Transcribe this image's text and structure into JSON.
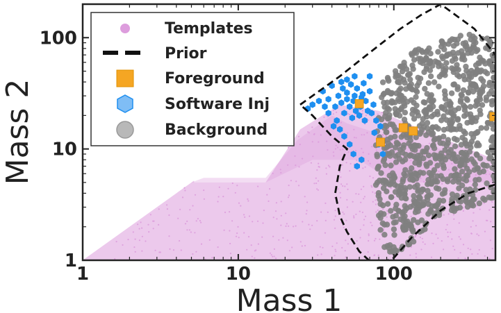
{
  "chart_data": {
    "type": "scatter",
    "xscale": "log",
    "yscale": "log",
    "xlim": [
      1,
      450
    ],
    "ylim": [
      1,
      200
    ],
    "xlabel": "Mass 1",
    "ylabel": "Mass 2",
    "grid": false,
    "legend_position": "upper-left",
    "x_ticks": [
      {
        "value": 1,
        "label": "1"
      },
      {
        "value": 10,
        "label": "10"
      },
      {
        "value": 100,
        "label": "100"
      }
    ],
    "y_ticks": [
      {
        "value": 1,
        "label": "1"
      },
      {
        "value": 10,
        "label": "10"
      },
      {
        "value": 100,
        "label": "100"
      }
    ],
    "colors": {
      "templates": "#dd9ddd",
      "prior": "#111111",
      "foreground": "#f5a623",
      "software_inj": "#1e8ff0",
      "background": "#808080"
    },
    "series": [
      {
        "name": "Templates",
        "marker": "circle",
        "color": "#dd9ddd",
        "regions": [
          [
            [
              1,
              1
            ],
            [
              3,
              3
            ],
            [
              5.2,
              5.2
            ],
            [
              5.2,
              5
            ],
            [
              15,
              5
            ],
            [
              25,
              15
            ],
            [
              45,
              25
            ],
            [
              80,
              22
            ],
            [
              150,
              15
            ],
            [
              450,
              8
            ],
            [
              450,
              1
            ]
          ],
          [
            [
              5,
              5
            ],
            [
              6,
              5.5
            ],
            [
              15,
              5.5
            ],
            [
              24,
              12
            ],
            [
              40,
              20
            ],
            [
              50,
              17
            ],
            [
              90,
              13
            ],
            [
              200,
              10
            ],
            [
              450,
              6
            ],
            [
              450,
              5
            ],
            [
              200,
              5
            ],
            [
              100,
              5
            ],
            [
              60,
              8
            ],
            [
              30,
              8
            ],
            [
              15,
              5
            ]
          ]
        ]
      },
      {
        "name": "Prior",
        "marker": "dashed-line",
        "color": "#111111",
        "polygon": [
          [
            25,
            25
          ],
          [
            45,
            45
          ],
          [
            60,
            62
          ],
          [
            80,
            85
          ],
          [
            110,
            120
          ],
          [
            150,
            160
          ],
          [
            200,
            200
          ],
          [
            330,
            120
          ],
          [
            450,
            70
          ],
          [
            450,
            4.8
          ],
          [
            300,
            4
          ],
          [
            200,
            2.8
          ],
          [
            130,
            1.6
          ],
          [
            100,
            1.05
          ],
          [
            75,
            0.9
          ],
          [
            60,
            1.2
          ],
          [
            50,
            1.8
          ],
          [
            45,
            2.5
          ],
          [
            42,
            4
          ],
          [
            45,
            7
          ],
          [
            50,
            10
          ],
          [
            40,
            13
          ],
          [
            30,
            20
          ]
        ]
      },
      {
        "name": "Foreground",
        "marker": "square",
        "color": "#f5a623",
        "points": [
          [
            60,
            25.5
          ],
          [
            115,
            15.5
          ],
          [
            133,
            14.5
          ],
          [
            82,
            11.5
          ],
          [
            440,
            19.5
          ]
        ]
      },
      {
        "name": "Software Inj",
        "marker": "hexagon",
        "color": "#1e8ff0",
        "points": [
          [
            35,
            33
          ],
          [
            38,
            28
          ],
          [
            40,
            37
          ],
          [
            42,
            24
          ],
          [
            44,
            30
          ],
          [
            46,
            26
          ],
          [
            47,
            35
          ],
          [
            48,
            21
          ],
          [
            50,
            28
          ],
          [
            50,
            32
          ],
          [
            52,
            24
          ],
          [
            53,
            38
          ],
          [
            54,
            19
          ],
          [
            55,
            27
          ],
          [
            56,
            30
          ],
          [
            57,
            22
          ],
          [
            58,
            35
          ],
          [
            60,
            20
          ],
          [
            61,
            24
          ],
          [
            62,
            29
          ],
          [
            63,
            31
          ],
          [
            65,
            18
          ],
          [
            66,
            27
          ],
          [
            68,
            22
          ],
          [
            70,
            33
          ],
          [
            72,
            21
          ],
          [
            74,
            25
          ],
          [
            75,
            14
          ],
          [
            77,
            18
          ],
          [
            80,
            11
          ],
          [
            82,
            16
          ],
          [
            85,
            9
          ],
          [
            43,
            18
          ],
          [
            45,
            15
          ],
          [
            48,
            13
          ],
          [
            52,
            11
          ],
          [
            55,
            9
          ],
          [
            58,
            7
          ],
          [
            62,
            8
          ],
          [
            38,
            21
          ],
          [
            41,
            16
          ],
          [
            36,
            24
          ],
          [
            33,
            27
          ],
          [
            30,
            25
          ],
          [
            28,
            23
          ],
          [
            46,
            40
          ],
          [
            50,
            42
          ],
          [
            56,
            45
          ],
          [
            64,
            39
          ],
          [
            70,
            45
          ]
        ]
      },
      {
        "name": "Background",
        "marker": "circle",
        "color": "#808080",
        "region": [
          [
            85,
            40
          ],
          [
            130,
            75
          ],
          [
            200,
            95
          ],
          [
            300,
            110
          ],
          [
            450,
            95
          ],
          [
            450,
            3.5
          ],
          [
            300,
            3
          ],
          [
            200,
            2.5
          ],
          [
            130,
            1.4
          ],
          [
            100,
            1.1
          ],
          [
            85,
            1.3
          ],
          [
            78,
            3
          ],
          [
            75,
            8
          ],
          [
            80,
            20
          ]
        ],
        "approx_count": 900
      }
    ]
  }
}
